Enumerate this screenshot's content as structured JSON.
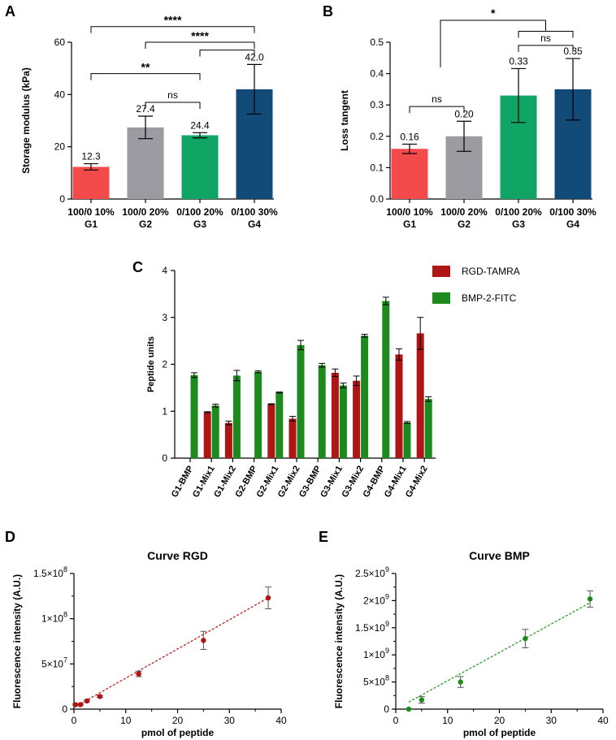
{
  "chart_data": [
    {
      "panel": "A",
      "type": "bar",
      "title": "",
      "ylabel": "Storage modulus (kPa)",
      "xlabel": "",
      "ylim": [
        0,
        60
      ],
      "yticks": [
        "0",
        "20",
        "40",
        "60"
      ],
      "categories": [
        {
          "line1": "100/0 10%",
          "line2": "G1"
        },
        {
          "line1": "100/0 20%",
          "line2": "G2"
        },
        {
          "line1": "0/100 20%",
          "line2": "G3"
        },
        {
          "line1": "0/100 30%",
          "line2": "G4"
        }
      ],
      "values": [
        12.3,
        27.4,
        24.4,
        42.0
      ],
      "value_labels": [
        "12.3",
        "27.4",
        "24.4",
        "42.0"
      ],
      "errors": [
        1.2,
        4.3,
        1.0,
        9.5
      ],
      "colors": [
        "#f34b4b",
        "#9b9ba1",
        "#10a565",
        "#124a78"
      ],
      "significance": [
        {
          "from": 0,
          "to": 3,
          "label": "****",
          "y": 66
        },
        {
          "from": 0,
          "to": 2,
          "label": "**",
          "y": 48
        },
        {
          "from": 1,
          "to": 2,
          "label": "ns",
          "y": 37
        },
        {
          "from": 1,
          "to": 3,
          "label": "****",
          "y": 60
        },
        {
          "from": 2,
          "to": 3,
          "label": "",
          "y": 57
        }
      ]
    },
    {
      "panel": "B",
      "type": "bar",
      "title": "",
      "ylabel": "Loss tangent",
      "xlabel": "",
      "ylim": [
        0,
        0.5
      ],
      "yticks": [
        "0.0",
        "0.1",
        "0.2",
        "0.3",
        "0.4",
        "0.5"
      ],
      "categories": [
        {
          "line1": "100/0 10%",
          "line2": "G1"
        },
        {
          "line1": "100/0 20%",
          "line2": "G2"
        },
        {
          "line1": "0/100 20%",
          "line2": "G3"
        },
        {
          "line1": "0/100 30%",
          "line2": "G4"
        }
      ],
      "values": [
        0.16,
        0.2,
        0.33,
        0.35
      ],
      "value_labels": [
        "0.16",
        "0.20",
        "0.33",
        "0.35"
      ],
      "errors": [
        0.015,
        0.048,
        0.086,
        0.098
      ],
      "colors": [
        "#f34b4b",
        "#9b9ba1",
        "#10a565",
        "#124a78"
      ],
      "significance": [
        {
          "from": 0,
          "to": 1,
          "label": "ns",
          "y": 0.295
        },
        {
          "from": 2,
          "to": 3,
          "label": "ns",
          "y": 0.49
        },
        {
          "from": 2,
          "to": 3,
          "label": "",
          "y": 0.535
        },
        {
          "from": 0.5,
          "to": 2.5,
          "label": "*",
          "y": 0.57
        }
      ]
    },
    {
      "panel": "C",
      "type": "bar",
      "ylabel": "Peptide units",
      "ylim": [
        0,
        4
      ],
      "yticks": [
        "0",
        "1",
        "2",
        "3",
        "4"
      ],
      "categories": [
        "G1-BMP",
        "G1-Mix1",
        "G1-Mix2",
        "G2-BMP",
        "G2-Mix1",
        "G2-Mix2",
        "G3-BMP",
        "G3-Mix1",
        "G3-Mix2",
        "G4-BMP",
        "G4-Mix1",
        "G4-Mix2"
      ],
      "legend": {
        "position": "top-right"
      },
      "series": [
        {
          "name": "RGD-TAMRA",
          "color": "#b01515",
          "values": [
            null,
            0.98,
            0.75,
            null,
            1.15,
            0.84,
            null,
            1.82,
            1.65,
            null,
            2.21,
            2.66
          ],
          "errors": [
            null,
            0.01,
            0.04,
            null,
            0.01,
            0.05,
            null,
            0.08,
            0.1,
            null,
            0.12,
            0.34
          ]
        },
        {
          "name": "BMP-2-FITC",
          "color": "#1c8a1c",
          "values": [
            1.77,
            1.12,
            1.76,
            1.84,
            1.4,
            2.41,
            1.98,
            1.55,
            2.61,
            3.35,
            0.76,
            1.26
          ],
          "errors": [
            0.05,
            0.03,
            0.11,
            0.02,
            0.01,
            0.1,
            0.04,
            0.05,
            0.03,
            0.08,
            0.02,
            0.05
          ]
        }
      ]
    },
    {
      "panel": "D",
      "type": "scatter",
      "title": "Curve RGD",
      "xlabel": "pmol of peptide",
      "ylabel": "Fluorescence intensity (A.U.)",
      "xlim": [
        0,
        40
      ],
      "ylim": [
        0,
        150000000
      ],
      "xticks": [
        "0",
        "10",
        "20",
        "30",
        "40"
      ],
      "ytick_labels": [
        {
          "base": "0",
          "exp": ""
        },
        {
          "base": "5×10",
          "exp": "7"
        },
        {
          "base": "1×10",
          "exp": "8"
        },
        {
          "base": "1.5×10",
          "exp": "8"
        }
      ],
      "point_color": "#b01515",
      "fit_color": "#c02020",
      "x": [
        0.3,
        1.25,
        2.5,
        5,
        12.5,
        25,
        37.5
      ],
      "y": [
        5000000,
        5000000,
        9000000,
        14000000,
        39000000,
        76000000,
        123000000
      ],
      "errors": [
        800000,
        800000,
        1000000,
        1000000,
        3000000,
        10000000,
        12000000
      ],
      "fit": {
        "x": [
          0,
          37.5
        ],
        "y": [
          2000000,
          123000000
        ]
      }
    },
    {
      "panel": "E",
      "type": "scatter",
      "title": "Curve BMP",
      "xlabel": "pmol of peptide",
      "ylabel": "Fluorescence intensity (A.U.)",
      "xlim": [
        0,
        40
      ],
      "ylim": [
        0,
        2500000000
      ],
      "xticks": [
        "0",
        "10",
        "20",
        "30",
        "40"
      ],
      "ytick_labels": [
        {
          "base": "0",
          "exp": ""
        },
        {
          "base": "5×10",
          "exp": "8"
        },
        {
          "base": "1×10",
          "exp": "9"
        },
        {
          "base": "1.5×10",
          "exp": "9"
        },
        {
          "base": "2×10",
          "exp": "9"
        },
        {
          "base": "2.5×10",
          "exp": "9"
        }
      ],
      "point_color": "#1c8a1c",
      "fit_color": "#2a9a2a",
      "x": [
        2.5,
        5,
        12.5,
        25,
        37.5
      ],
      "y": [
        0,
        170000000,
        500000000,
        1300000000,
        2030000000
      ],
      "errors": [
        0,
        60000000,
        100000000,
        170000000,
        150000000
      ],
      "fit": {
        "x": [
          2.5,
          37.5
        ],
        "y": [
          130000000,
          1960000000
        ]
      }
    }
  ]
}
